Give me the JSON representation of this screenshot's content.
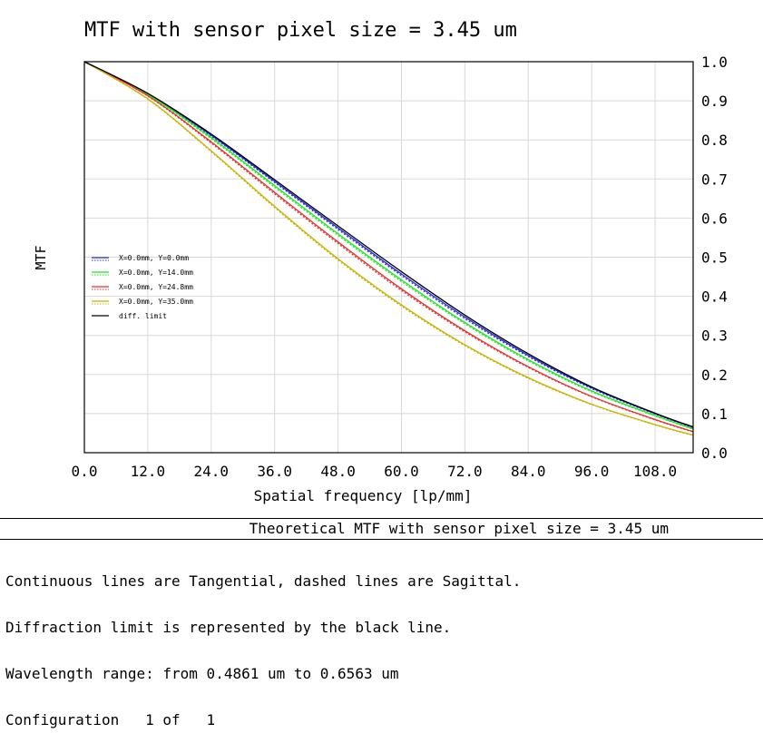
{
  "chart_data": {
    "type": "line",
    "title": "MTF with sensor pixel size = 3.45 um",
    "xlabel": "Spatial frequency [lp/mm]",
    "ylabel": "MTF",
    "xlim": [
      0,
      115.2
    ],
    "ylim": [
      0,
      1
    ],
    "x_ticks": [
      "0.0",
      "12.0",
      "24.0",
      "36.0",
      "48.0",
      "60.0",
      "72.0",
      "84.0",
      "96.0",
      "108.0"
    ],
    "y_ticks": [
      "0.0",
      "0.1",
      "0.2",
      "0.3",
      "0.4",
      "0.5",
      "0.6",
      "0.7",
      "0.8",
      "0.9",
      "1.0"
    ],
    "grid": true,
    "legend_position": "middle-left",
    "x": [
      0,
      12,
      24,
      36,
      48,
      60,
      72,
      84,
      96,
      108,
      115.2
    ],
    "series": [
      {
        "name": "X=0.0mm, Y=0.0mm",
        "color": "#2b2bd8",
        "style": "solid",
        "values": [
          1.0,
          0.918,
          0.812,
          0.694,
          0.575,
          0.457,
          0.347,
          0.249,
          0.166,
          0.1,
          0.065
        ]
      },
      {
        "name": "X=0.0mm, Y=0.0mm",
        "color": "#2b2bd8",
        "style": "dashed",
        "values": [
          1.0,
          0.917,
          0.81,
          0.691,
          0.571,
          0.453,
          0.343,
          0.246,
          0.164,
          0.099,
          0.064
        ]
      },
      {
        "name": "X=0.0mm, Y=14.0mm",
        "color": "#1ee81e",
        "style": "solid",
        "values": [
          1.0,
          0.916,
          0.806,
          0.683,
          0.56,
          0.442,
          0.333,
          0.238,
          0.158,
          0.095,
          0.061
        ]
      },
      {
        "name": "X=0.0mm, Y=14.0mm",
        "color": "#1ee81e",
        "style": "dashed",
        "values": [
          1.0,
          0.915,
          0.803,
          0.679,
          0.556,
          0.438,
          0.33,
          0.235,
          0.156,
          0.094,
          0.06
        ]
      },
      {
        "name": "X=0.0mm, Y=24.8mm",
        "color": "#e83030",
        "style": "solid",
        "values": [
          1.0,
          0.913,
          0.795,
          0.666,
          0.539,
          0.419,
          0.312,
          0.22,
          0.144,
          0.085,
          0.054
        ]
      },
      {
        "name": "X=0.0mm, Y=24.8mm",
        "color": "#e83030",
        "style": "dashed",
        "values": [
          1.0,
          0.912,
          0.792,
          0.662,
          0.535,
          0.415,
          0.309,
          0.218,
          0.143,
          0.084,
          0.053
        ]
      },
      {
        "name": "X=0.0mm, Y=35.0mm",
        "color": "#c8b400",
        "style": "solid",
        "values": [
          1.0,
          0.905,
          0.772,
          0.63,
          0.496,
          0.378,
          0.276,
          0.192,
          0.124,
          0.072,
          0.045
        ]
      },
      {
        "name": "X=0.0mm, Y=35.0mm",
        "color": "#c8b400",
        "style": "dashed",
        "values": [
          1.0,
          0.904,
          0.77,
          0.627,
          0.493,
          0.375,
          0.274,
          0.19,
          0.123,
          0.071,
          0.044
        ]
      },
      {
        "name": "diff. limit",
        "color": "#000000",
        "style": "solid",
        "values": [
          1.0,
          0.919,
          0.815,
          0.698,
          0.58,
          0.463,
          0.352,
          0.253,
          0.168,
          0.101,
          0.066
        ]
      }
    ],
    "legend": [
      {
        "label": "X=0.0mm, Y=0.0mm",
        "color": "#2b2bd8",
        "dashed": true
      },
      {
        "label": "X=0.0mm, Y=14.0mm",
        "color": "#1ee81e",
        "dashed": true
      },
      {
        "label": "X=0.0mm, Y=24.8mm",
        "color": "#e83030",
        "dashed": true
      },
      {
        "label": "X=0.0mm, Y=35.0mm",
        "color": "#c8b400",
        "dashed": true
      },
      {
        "label": "diff. limit",
        "color": "#000000",
        "dashed": false
      }
    ]
  },
  "footer": {
    "title": "Theoretical MTF with sensor pixel size = 3.45 um",
    "notes": [
      "Continuous lines are Tangential, dashed lines are Sagittal.",
      "Diffraction limit is represented by the black line.",
      "Wavelength range: from 0.4861 um to 0.6563 um",
      "Configuration   1 of   1"
    ]
  }
}
